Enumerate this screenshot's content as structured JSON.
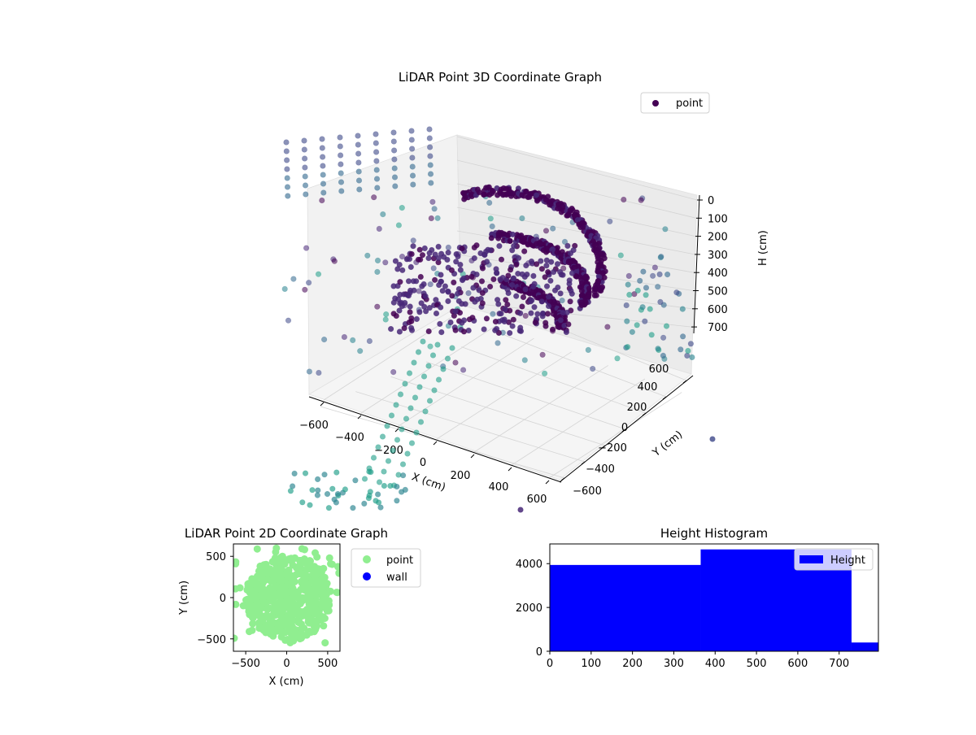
{
  "chart_data": [
    {
      "type": "scatter",
      "title": "LiDAR Point 3D Coordinate Graph",
      "projection": "3d",
      "xlabel": "X (cm)",
      "ylabel": "Y (cm)",
      "zlabel": "H (cm)",
      "x_ticks": [
        "−600",
        "−400",
        "−200",
        "0",
        "200",
        "400",
        "600"
      ],
      "y_ticks": [
        "−600",
        "−400",
        "−200",
        "0",
        "200",
        "400",
        "600"
      ],
      "z_ticks": [
        "0",
        "100",
        "200",
        "300",
        "400",
        "500",
        "600",
        "700"
      ],
      "xlim": [
        -650,
        650
      ],
      "ylim": [
        -650,
        650
      ],
      "zlim": [
        -30,
        760
      ],
      "z_axis_inverted": true,
      "legend": {
        "position": "top-right",
        "entries": [
          {
            "label": "point",
            "color": "#440154"
          }
        ]
      },
      "colormap": "viridis",
      "grid": true
    },
    {
      "type": "scatter",
      "title": "LiDAR Point 2D Coordinate Graph",
      "xlabel": "X (cm)",
      "ylabel": "Y (cm)",
      "x_ticks": [
        "−500",
        "0",
        "500"
      ],
      "y_ticks": [
        "−500",
        "0",
        "500"
      ],
      "xlim": [
        -650,
        650
      ],
      "ylim": [
        -650,
        650
      ],
      "legend": {
        "position": "outside-right",
        "entries": [
          {
            "label": "point",
            "color": "#90ee90"
          },
          {
            "label": "wall",
            "color": "#0000ff"
          }
        ]
      },
      "grid": false
    },
    {
      "type": "bar",
      "title": "Height Histogram",
      "xlabel": "",
      "ylabel": "",
      "bins": [
        {
          "x0": 0,
          "x1": 365,
          "value": 3940
        },
        {
          "x0": 365,
          "x1": 730,
          "value": 4650
        },
        {
          "x0": 730,
          "x1": 1095,
          "value": 400
        }
      ],
      "x_ticks": [
        "0",
        "100",
        "200",
        "300",
        "400",
        "500",
        "600",
        "700"
      ],
      "y_ticks": [
        "0",
        "2000",
        "4000"
      ],
      "xlim": [
        0,
        795
      ],
      "ylim": [
        0,
        4900
      ],
      "color": "#0000ff",
      "legend": {
        "position": "top-right",
        "entries": [
          {
            "label": "Height",
            "color": "#0000ff"
          }
        ]
      },
      "grid": false
    }
  ]
}
